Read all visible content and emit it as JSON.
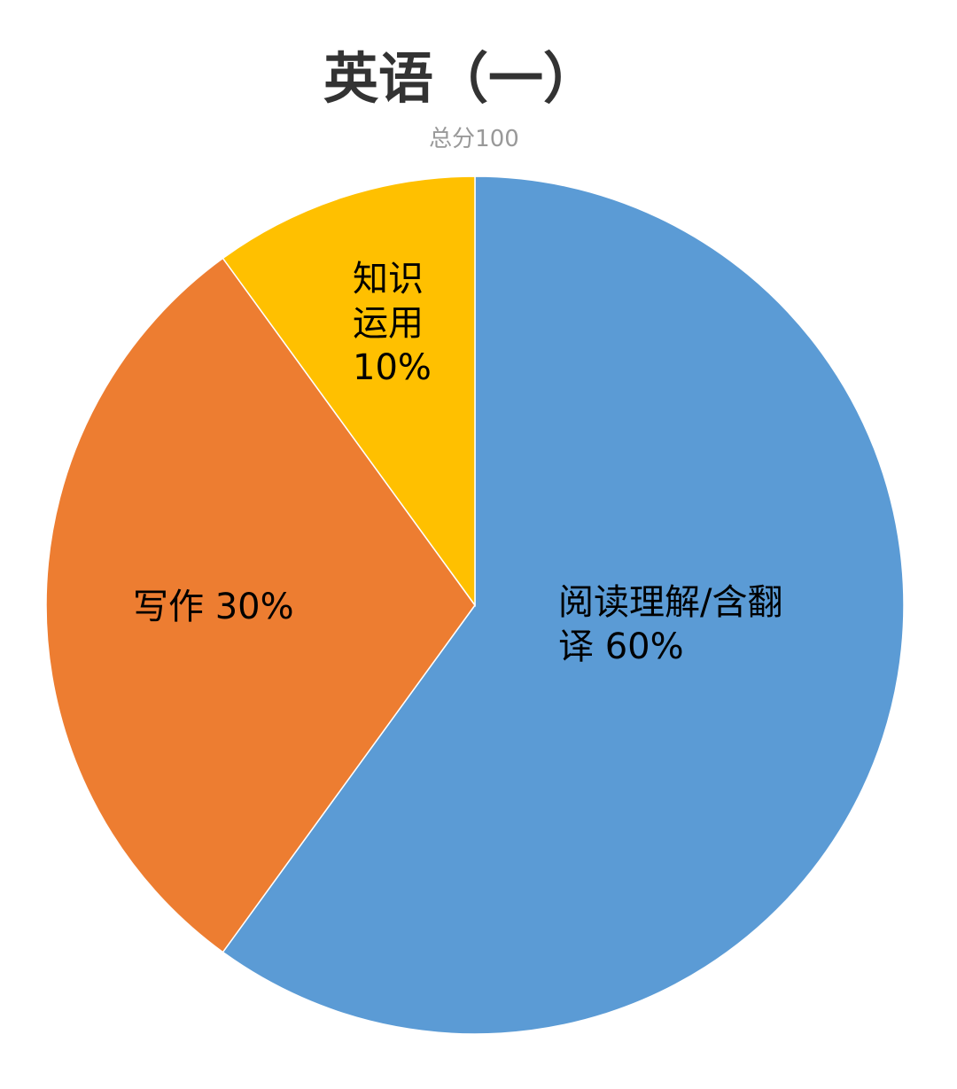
{
  "chart_data": {
    "type": "pie",
    "title": "英语（一）",
    "subtitle": "总分100",
    "categories": [
      "阅读理解/含翻译",
      "写作",
      "知识运用"
    ],
    "values": [
      60,
      30,
      10
    ],
    "value_labels": [
      "60%",
      "30%",
      "10%"
    ],
    "colors": [
      "#5b9bd5",
      "#ed7d31",
      "#ffc000"
    ]
  }
}
